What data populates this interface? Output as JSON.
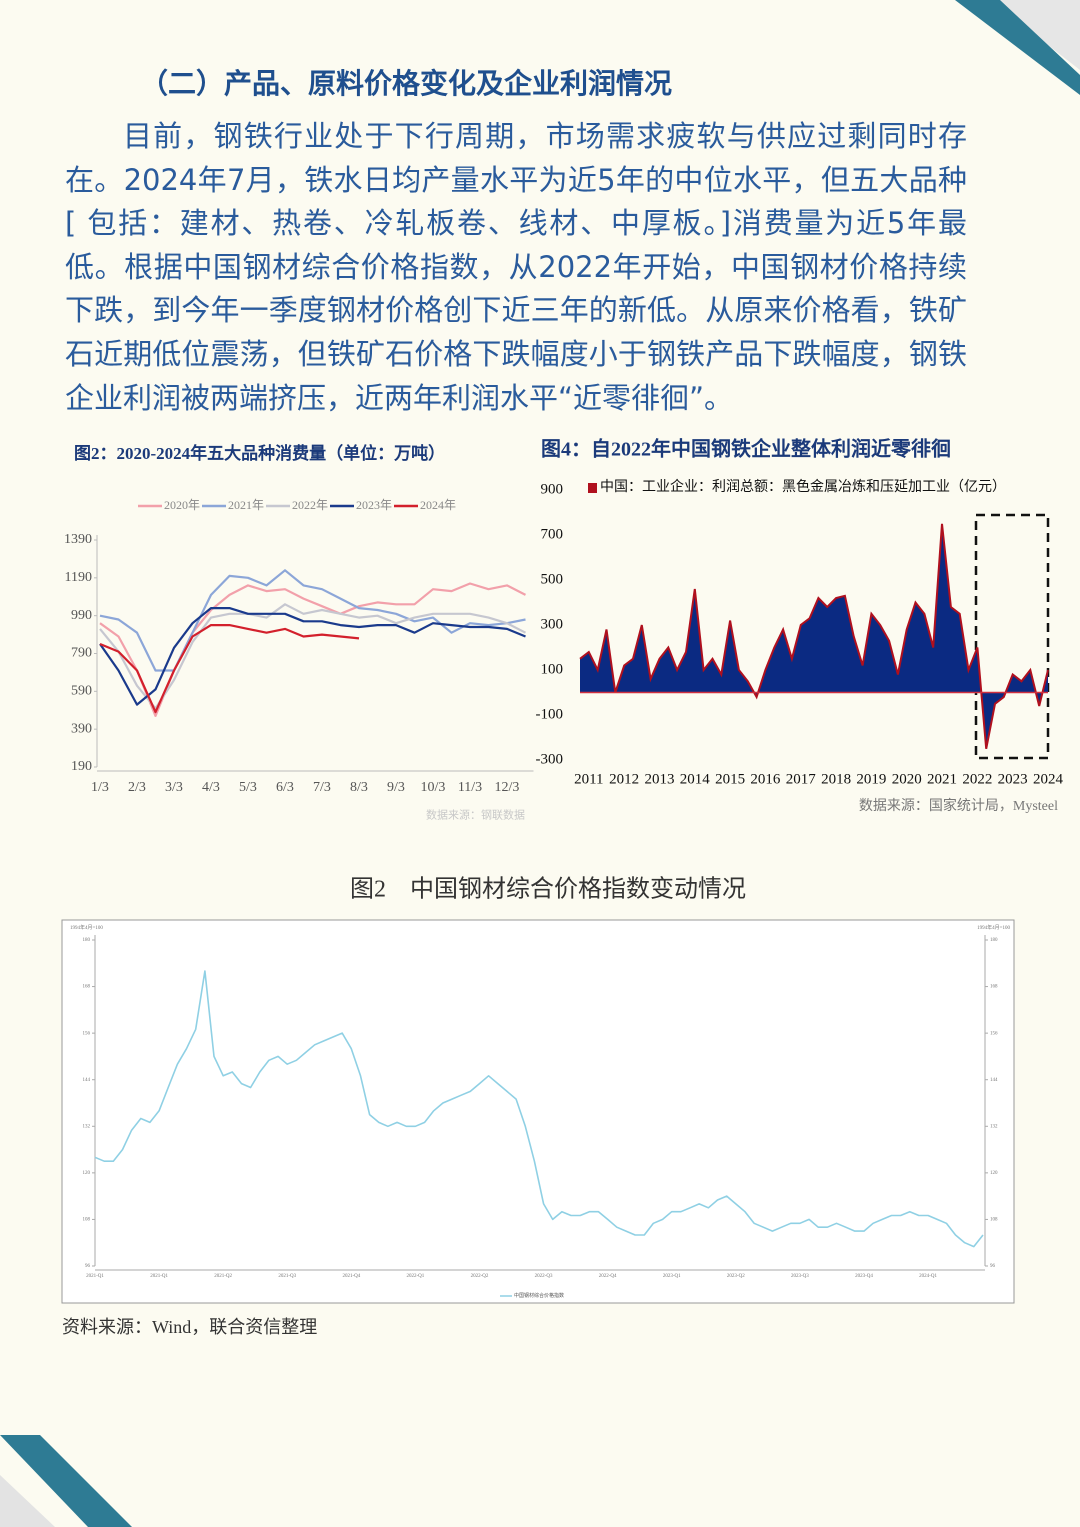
{
  "heading": "（二）产品、原料价格变化及企业利润情况",
  "body": "目前，钢铁行业处于下行周期，市场需求疲软与供应过剩同时存在。2024年7月，铁水日均产量水平为近5年的中位水平，但五大品种[ 包括：建材、热卷、冷轧板卷、线材、中厚板。]消费量为近5年最低。根据中国钢材综合价格指数，从2022年开始，中国钢材价格持续下跌，到今年一季度钢材价格创下近三年的新低。从原来价格看，铁矿石近期低位震荡，但铁矿石价格下跌幅度小于钢铁产品下跌幅度，钢铁企业利润被两端挤压，近两年利润水平“近零徘徊”。",
  "chart_data": [
    {
      "type": "line",
      "title": "图2：2020-2024年五大品种消费量（单位：万吨）",
      "source": "数据来源：钢联数据",
      "categories": [
        "1/3",
        null,
        "2/3",
        null,
        "3/3",
        null,
        "4/3",
        null,
        "5/3",
        null,
        "6/3",
        null,
        "7/3",
        null,
        "8/3",
        null,
        "9/3",
        null,
        "10/3",
        null,
        "11/3",
        null,
        "12/3",
        null
      ],
      "ylim": [
        190,
        1390
      ],
      "yticks": [
        1390,
        1190,
        990,
        790,
        590,
        390,
        190
      ],
      "series": [
        {
          "name": "2020年",
          "color": "#f2a0aa",
          "values": [
            950,
            880,
            700,
            460,
            700,
            900,
            1020,
            1100,
            1150,
            1120,
            1130,
            1080,
            1040,
            1000,
            1040,
            1060,
            1050,
            1050,
            1130,
            1120,
            1160,
            1130,
            1150,
            1100
          ]
        },
        {
          "name": "2021年",
          "color": "#8ca6d8",
          "values": [
            990,
            970,
            900,
            700,
            700,
            900,
            1100,
            1200,
            1190,
            1150,
            1230,
            1150,
            1130,
            1080,
            1030,
            1020,
            1000,
            960,
            980,
            900,
            950,
            940,
            950,
            970
          ]
        },
        {
          "name": "2022年",
          "color": "#c6c7d0",
          "values": [
            920,
            800,
            620,
            500,
            650,
            850,
            980,
            1000,
            1000,
            980,
            1050,
            1000,
            1020,
            1000,
            980,
            990,
            950,
            980,
            1000,
            1000,
            1000,
            980,
            950,
            900
          ]
        },
        {
          "name": "2023年",
          "color": "#1a3a8c",
          "values": [
            840,
            700,
            520,
            600,
            820,
            950,
            1030,
            1030,
            1000,
            1000,
            1000,
            960,
            960,
            940,
            930,
            940,
            940,
            900,
            950,
            940,
            930,
            930,
            920,
            880
          ]
        },
        {
          "name": "2024年",
          "color": "#d3202c",
          "values": [
            840,
            800,
            700,
            480,
            700,
            880,
            940,
            940,
            920,
            900,
            920,
            880,
            890,
            880,
            870,
            null,
            null,
            null,
            null,
            null,
            null,
            null,
            null,
            null
          ]
        }
      ]
    },
    {
      "type": "area",
      "title": "图4：自2022年中国钢铁企业整体利润近零徘徊",
      "source": "数据来源：国家统计局，Mysteel",
      "categories": [
        null,
        "2011",
        null,
        null,
        null,
        "2012",
        null,
        null,
        null,
        "2013",
        null,
        null,
        null,
        "2014",
        null,
        null,
        null,
        "2015",
        null,
        null,
        null,
        "2016",
        null,
        null,
        null,
        "2017",
        null,
        null,
        null,
        "2018",
        null,
        null,
        null,
        "2019",
        null,
        null,
        null,
        "2020",
        null,
        null,
        null,
        "2021",
        null,
        null,
        null,
        "2022",
        null,
        null,
        null,
        "2023",
        null,
        null,
        null,
        "2024"
      ],
      "ylim": [
        -300,
        900
      ],
      "yticks": [
        900,
        700,
        500,
        300,
        100,
        -100,
        -300
      ],
      "series": [
        {
          "name": "中国：工业企业：利润总额：黑色金属冶炼和压延加工业（亿元）",
          "color": "#0b2a82",
          "edge_color": "#b0101e",
          "values": [
            150,
            180,
            100,
            280,
            0,
            120,
            150,
            300,
            60,
            150,
            200,
            100,
            180,
            460,
            100,
            150,
            80,
            320,
            100,
            50,
            -20,
            100,
            200,
            280,
            150,
            300,
            330,
            420,
            380,
            420,
            430,
            250,
            120,
            350,
            300,
            230,
            80,
            280,
            400,
            350,
            200,
            750,
            380,
            350,
            100,
            200,
            -250,
            -50,
            -20,
            80,
            50,
            100,
            -60,
            100
          ]
        }
      ]
    },
    {
      "type": "line",
      "title": "图2　中国钢材综合价格指数变动情况",
      "unit": "1994年4月=100",
      "source": "资料来源：Wind，联合资信整理",
      "categories": [
        "2021-Q1",
        null,
        null,
        null,
        null,
        null,
        null,
        "2021-Q1",
        null,
        null,
        null,
        null,
        null,
        null,
        "2021-Q2",
        null,
        null,
        null,
        null,
        null,
        null,
        "2021-Q3",
        null,
        null,
        null,
        null,
        null,
        null,
        "2021-Q4",
        null,
        null,
        null,
        null,
        null,
        null,
        "2022-Q1",
        null,
        null,
        null,
        null,
        null,
        null,
        "2022-Q2",
        null,
        null,
        null,
        null,
        null,
        null,
        "2022-Q3",
        null,
        null,
        null,
        null,
        null,
        null,
        "2022-Q4",
        null,
        null,
        null,
        null,
        null,
        null,
        "2023-Q1",
        null,
        null,
        null,
        null,
        null,
        null,
        "2023-Q2",
        null,
        null,
        null,
        null,
        null,
        null,
        "2023-Q3",
        null,
        null,
        null,
        null,
        null,
        null,
        "2023-Q4",
        null,
        null,
        null,
        null,
        null,
        null,
        "2024-Q1",
        null,
        null,
        null,
        null,
        null,
        null
      ],
      "ylim": [
        96,
        180
      ],
      "yticks": [
        180,
        168,
        156,
        144,
        132,
        120,
        108,
        96
      ],
      "series": [
        {
          "name": "中国钢材综合价格指数",
          "color": "#8fd0e4",
          "values": [
            124,
            123,
            123,
            126,
            131,
            134,
            133,
            136,
            142,
            148,
            152,
            157,
            172,
            150,
            145,
            146,
            143,
            142,
            146,
            149,
            150,
            148,
            149,
            151,
            153,
            154,
            155,
            156,
            152,
            145,
            135,
            133,
            132,
            133,
            132,
            132,
            133,
            136,
            138,
            139,
            140,
            141,
            143,
            145,
            143,
            141,
            139,
            132,
            123,
            112,
            108,
            110,
            109,
            109,
            110,
            110,
            108,
            106,
            105,
            104,
            104,
            107,
            108,
            110,
            110,
            111,
            112,
            111,
            113,
            114,
            112,
            110,
            107,
            106,
            105,
            106,
            107,
            107,
            108,
            106,
            106,
            107,
            106,
            105,
            105,
            107,
            108,
            109,
            109,
            110,
            109,
            109,
            108,
            107,
            104,
            102,
            101,
            104
          ]
        }
      ]
    }
  ]
}
